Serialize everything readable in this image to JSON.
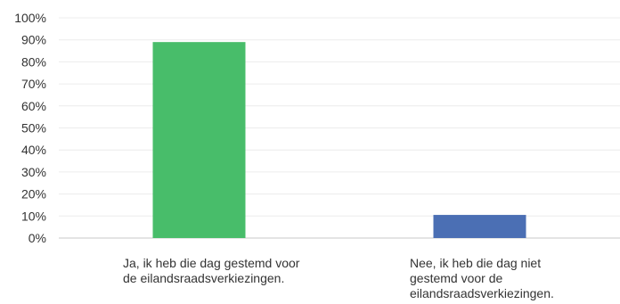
{
  "chart_data": {
    "type": "bar",
    "categories": [
      "Ja, ik heb die dag gestemd voor de eilandsraadsverkiezingen.",
      "Nee, ik heb die dag niet gestemd voor de eilandsraadsverkiezingen."
    ],
    "values": [
      89,
      10.5
    ],
    "ylim": [
      0,
      100
    ],
    "y_ticks": [
      0,
      10,
      20,
      30,
      40,
      50,
      60,
      70,
      80,
      90,
      100
    ],
    "y_tick_labels": [
      "0%",
      "10%",
      "20%",
      "30%",
      "40%",
      "50%",
      "60%",
      "70%",
      "80%",
      "90%",
      "100%"
    ],
    "colors": [
      "#48bd6a",
      "#4b6fb4"
    ],
    "grid": true
  }
}
